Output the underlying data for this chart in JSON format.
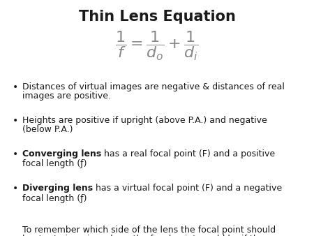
{
  "title": "Thin Lens Equation",
  "title_fontsize": 15,
  "formula": "$\\dfrac{1}{f} = \\dfrac{1}{d_o} + \\dfrac{1}{d_i}$",
  "formula_fontsize": 16,
  "formula_color": "#888888",
  "bullet1_normal": "Distances of virtual images are negative & distances of real\nimages are positive.",
  "bullet2_normal": "Heights are positive if upright (above P.A.) and negative\n(below P.A.)",
  "bullet3_bold": "Converging lens",
  "bullet3_normal": " has a real focal point (F) and a positive\nfocal length (ƒ)",
  "bullet4_bold": "Diverging lens",
  "bullet4_normal": " has a virtual focal point (F) and a negative\nfocal length (ƒ)",
  "note": "To remember which side of the lens the focal point should\nbe, try to imagine where the focal point would be if the\nparallel rays of light passed through the lens.",
  "background_color": "#ffffff",
  "text_color": "#1a1a1a",
  "bullet_fontsize": 9.0,
  "note_fontsize": 9.0,
  "bullet_char": "•",
  "fig_width": 4.5,
  "fig_height": 3.38,
  "dpi": 100
}
